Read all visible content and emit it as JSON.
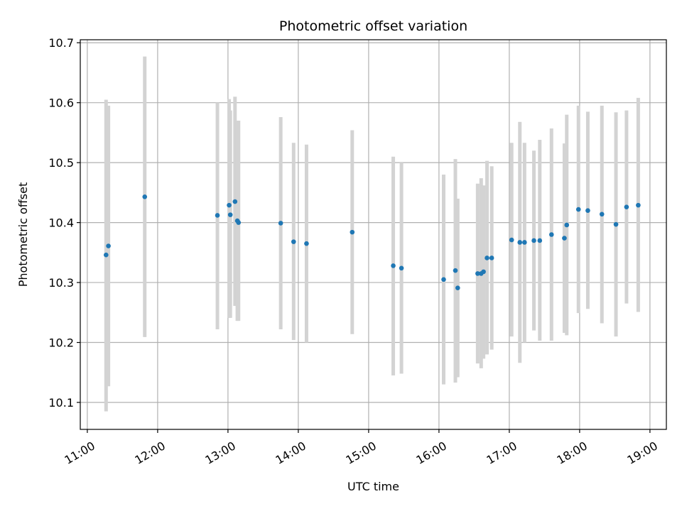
{
  "chart_data": {
    "type": "scatter",
    "title": "Photometric offset variation",
    "xlabel": "UTC time",
    "ylabel": "Photometric offset",
    "x_unit": "UTC hour of day",
    "xlim": [
      "10:54",
      "19:14"
    ],
    "ylim": [
      10.055,
      10.705
    ],
    "x_ticks": [
      "11:00",
      "12:00",
      "13:00",
      "14:00",
      "15:00",
      "16:00",
      "17:00",
      "18:00",
      "19:00"
    ],
    "y_ticks": [
      "10.1",
      "10.2",
      "10.3",
      "10.4",
      "10.5",
      "10.6",
      "10.7"
    ],
    "grid": true,
    "colors": {
      "point": "#1f77b4",
      "errorbar": "#d3d3d3",
      "grid": "#b0b0b0"
    },
    "points": [
      {
        "x": "11:16",
        "y": 10.346,
        "ylo": 10.085,
        "yhi": 10.605
      },
      {
        "x": "11:18",
        "y": 10.361,
        "ylo": 10.127,
        "yhi": 10.595
      },
      {
        "x": "11:49",
        "y": 10.443,
        "ylo": 10.209,
        "yhi": 10.677
      },
      {
        "x": "12:51",
        "y": 10.412,
        "ylo": 10.222,
        "yhi": 10.6
      },
      {
        "x": "13:01",
        "y": 10.429,
        "ylo": 10.241,
        "yhi": 10.606
      },
      {
        "x": "13:02",
        "y": 10.413,
        "ylo": 10.241,
        "yhi": 10.587
      },
      {
        "x": "13:06",
        "y": 10.435,
        "ylo": 10.261,
        "yhi": 10.61
      },
      {
        "x": "13:08",
        "y": 10.403,
        "ylo": 10.236,
        "yhi": 10.57
      },
      {
        "x": "13:09",
        "y": 10.4,
        "ylo": 10.236,
        "yhi": 10.57
      },
      {
        "x": "13:45",
        "y": 10.399,
        "ylo": 10.222,
        "yhi": 10.576
      },
      {
        "x": "13:56",
        "y": 10.368,
        "ylo": 10.204,
        "yhi": 10.533
      },
      {
        "x": "14:07",
        "y": 10.365,
        "ylo": 10.2,
        "yhi": 10.53
      },
      {
        "x": "14:46",
        "y": 10.384,
        "ylo": 10.214,
        "yhi": 10.554
      },
      {
        "x": "15:21",
        "y": 10.328,
        "ylo": 10.145,
        "yhi": 10.51
      },
      {
        "x": "15:28",
        "y": 10.324,
        "ylo": 10.148,
        "yhi": 10.5
      },
      {
        "x": "16:04",
        "y": 10.305,
        "ylo": 10.13,
        "yhi": 10.48
      },
      {
        "x": "16:14",
        "y": 10.32,
        "ylo": 10.133,
        "yhi": 10.506
      },
      {
        "x": "16:16",
        "y": 10.291,
        "ylo": 10.142,
        "yhi": 10.44
      },
      {
        "x": "16:33",
        "y": 10.315,
        "ylo": 10.165,
        "yhi": 10.465
      },
      {
        "x": "16:36",
        "y": 10.315,
        "ylo": 10.157,
        "yhi": 10.474
      },
      {
        "x": "16:38",
        "y": 10.318,
        "ylo": 10.173,
        "yhi": 10.462
      },
      {
        "x": "16:41",
        "y": 10.341,
        "ylo": 10.18,
        "yhi": 10.503
      },
      {
        "x": "16:45",
        "y": 10.341,
        "ylo": 10.188,
        "yhi": 10.494
      },
      {
        "x": "17:02",
        "y": 10.371,
        "ylo": 10.21,
        "yhi": 10.533
      },
      {
        "x": "17:09",
        "y": 10.367,
        "ylo": 10.166,
        "yhi": 10.568
      },
      {
        "x": "17:13",
        "y": 10.367,
        "ylo": 10.2,
        "yhi": 10.533
      },
      {
        "x": "17:21",
        "y": 10.37,
        "ylo": 10.22,
        "yhi": 10.52
      },
      {
        "x": "17:26",
        "y": 10.37,
        "ylo": 10.203,
        "yhi": 10.538
      },
      {
        "x": "17:36",
        "y": 10.38,
        "ylo": 10.203,
        "yhi": 10.557
      },
      {
        "x": "17:47",
        "y": 10.374,
        "ylo": 10.216,
        "yhi": 10.532
      },
      {
        "x": "17:49",
        "y": 10.396,
        "ylo": 10.212,
        "yhi": 10.58
      },
      {
        "x": "17:59",
        "y": 10.422,
        "ylo": 10.249,
        "yhi": 10.595
      },
      {
        "x": "18:07",
        "y": 10.42,
        "ylo": 10.256,
        "yhi": 10.585
      },
      {
        "x": "18:19",
        "y": 10.414,
        "ylo": 10.232,
        "yhi": 10.595
      },
      {
        "x": "18:31",
        "y": 10.397,
        "ylo": 10.21,
        "yhi": 10.584
      },
      {
        "x": "18:40",
        "y": 10.426,
        "ylo": 10.265,
        "yhi": 10.587
      },
      {
        "x": "18:50",
        "y": 10.429,
        "ylo": 10.251,
        "yhi": 10.608
      }
    ]
  }
}
